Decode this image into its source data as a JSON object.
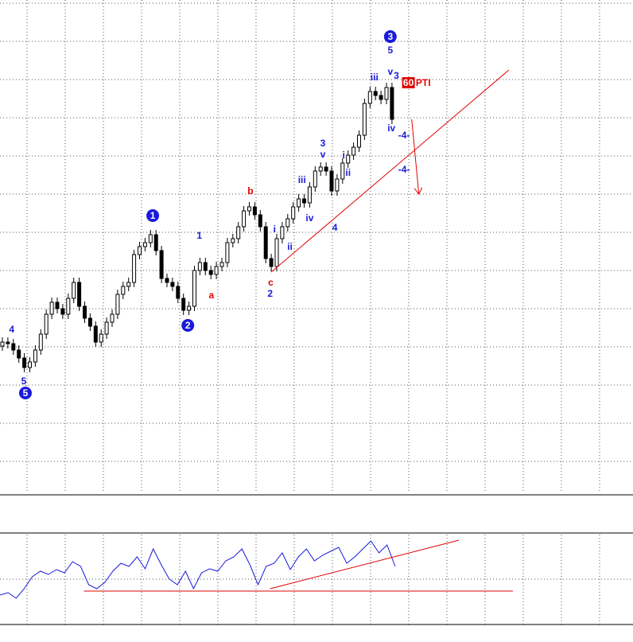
{
  "chart_data": {
    "type": "candlestick",
    "open": [
      185,
      190,
      188,
      180,
      170,
      158,
      165,
      180,
      200,
      225,
      240,
      232,
      225,
      245,
      265,
      235,
      220,
      210,
      190,
      200,
      215,
      225,
      250,
      260,
      265,
      300,
      310,
      315,
      325,
      305,
      270,
      265,
      260,
      245,
      230,
      235,
      280,
      290,
      280,
      275,
      285,
      290,
      315,
      320,
      335,
      355,
      360,
      350,
      335,
      295,
      285,
      320,
      335,
      345,
      360,
      370,
      365,
      385,
      405,
      410,
      405,
      380,
      395,
      415,
      425,
      435,
      450,
      490,
      505,
      500,
      495,
      510
    ],
    "high": [
      196,
      196,
      194,
      186,
      176,
      171,
      186,
      206,
      231,
      246,
      246,
      238,
      251,
      271,
      271,
      241,
      226,
      216,
      206,
      221,
      231,
      256,
      266,
      271,
      306,
      316,
      321,
      331,
      331,
      311,
      276,
      271,
      266,
      251,
      241,
      286,
      296,
      296,
      286,
      291,
      296,
      321,
      326,
      341,
      361,
      366,
      366,
      356,
      341,
      301,
      326,
      341,
      351,
      366,
      376,
      376,
      391,
      411,
      416,
      416,
      411,
      401,
      421,
      431,
      441,
      456,
      496,
      511,
      511,
      506,
      516,
      516
    ],
    "low": [
      179,
      182,
      174,
      164,
      152,
      152,
      159,
      174,
      194,
      219,
      226,
      219,
      219,
      239,
      229,
      214,
      204,
      184,
      184,
      194,
      209,
      219,
      244,
      254,
      259,
      294,
      304,
      309,
      299,
      264,
      259,
      254,
      239,
      224,
      224,
      229,
      274,
      274,
      269,
      269,
      279,
      284,
      309,
      314,
      329,
      349,
      344,
      329,
      289,
      279,
      279,
      314,
      329,
      339,
      354,
      359,
      359,
      379,
      399,
      399,
      374,
      374,
      389,
      409,
      419,
      429,
      444,
      484,
      494,
      489,
      489,
      464
    ],
    "close": [
      190,
      188,
      180,
      170,
      158,
      165,
      180,
      200,
      225,
      240,
      232,
      225,
      245,
      265,
      235,
      220,
      210,
      190,
      200,
      215,
      225,
      250,
      260,
      265,
      300,
      310,
      315,
      325,
      305,
      270,
      265,
      260,
      245,
      230,
      235,
      280,
      290,
      280,
      275,
      285,
      290,
      315,
      320,
      335,
      355,
      360,
      350,
      335,
      295,
      285,
      320,
      335,
      345,
      360,
      370,
      365,
      385,
      405,
      410,
      405,
      380,
      395,
      415,
      425,
      435,
      450,
      490,
      505,
      500,
      495,
      510,
      470
    ],
    "ylim": [
      0,
      620
    ],
    "annotations": [
      {
        "text": "4",
        "x": 1.7,
        "y": 206,
        "color": "#1a1adc"
      },
      {
        "text": "5",
        "x": 3.9,
        "y": 141,
        "color": "#1a1adc"
      },
      {
        "text": "5",
        "x": 4.2,
        "y": 126,
        "color": "#1a1adc",
        "circled": true
      },
      {
        "text": "1",
        "x": 27.4,
        "y": 349,
        "color": "#1a1adc",
        "circled": true
      },
      {
        "text": "2",
        "x": 33.8,
        "y": 211,
        "color": "#1a1adc",
        "circled": true
      },
      {
        "text": "1",
        "x": 35.9,
        "y": 324,
        "color": "#1a1adc"
      },
      {
        "text": "a",
        "x": 38.1,
        "y": 249,
        "color": "#e00000"
      },
      {
        "text": "b",
        "x": 45.2,
        "y": 380,
        "color": "#e00000"
      },
      {
        "text": "c",
        "x": 48.9,
        "y": 265,
        "color": "#e00000"
      },
      {
        "text": "2",
        "x": 48.8,
        "y": 251,
        "color": "#1a1adc"
      },
      {
        "text": "i",
        "x": 49.6,
        "y": 332,
        "color": "#1a1adc"
      },
      {
        "text": "ii",
        "x": 52.4,
        "y": 310,
        "color": "#1a1adc"
      },
      {
        "text": "iii",
        "x": 54.6,
        "y": 394,
        "color": "#1a1adc"
      },
      {
        "text": "iv",
        "x": 56.0,
        "y": 346,
        "color": "#1a1adc"
      },
      {
        "text": "3",
        "x": 58.4,
        "y": 440,
        "color": "#1a1adc"
      },
      {
        "text": "v",
        "x": 58.4,
        "y": 426,
        "color": "#1a1adc"
      },
      {
        "text": "4",
        "x": 60.6,
        "y": 334,
        "color": "#1a1adc"
      },
      {
        "text": "i",
        "x": 62.2,
        "y": 425,
        "color": "#1a1adc"
      },
      {
        "text": "ii",
        "x": 63.0,
        "y": 403,
        "color": "#1a1adc"
      },
      {
        "text": "iii",
        "x": 67.8,
        "y": 523,
        "color": "#1a1adc"
      },
      {
        "text": "v",
        "x": 70.7,
        "y": 530,
        "color": "#1a1adc"
      },
      {
        "text": "3",
        "x": 71.8,
        "y": 525,
        "color": "#1a1adc"
      },
      {
        "text": "iv",
        "x": 70.9,
        "y": 459,
        "color": "#1a1adc"
      },
      {
        "text": "3",
        "x": 70.7,
        "y": 574,
        "color": "#1a1adc",
        "circled": true
      },
      {
        "text": "5",
        "x": 70.7,
        "y": 557,
        "color": "#1a1adc"
      },
      {
        "text": "60",
        "x": 74.0,
        "y": 516,
        "color": "#ffffff",
        "boxed": "#e00000"
      },
      {
        "text": "PTI",
        "x": 76.7,
        "y": 516,
        "color": "#e00000"
      },
      {
        "text": "-4-",
        "x": 73.2,
        "y": 450,
        "color": "#1a1adc"
      },
      {
        "text": "-4-",
        "x": 73.2,
        "y": 407,
        "color": "#1a1adc"
      }
    ],
    "lines": [
      {
        "x1": 49.0,
        "y1": 278,
        "x2": 92.3,
        "y2": 532,
        "color": "#e00000"
      },
      {
        "x1": 74.6,
        "y1": 470,
        "x2": 75.9,
        "y2": 376,
        "color": "#e00000",
        "arrow": true
      }
    ],
    "indicator": {
      "values": [
        37,
        40,
        33,
        45,
        60,
        67,
        63,
        69,
        65,
        79,
        73,
        50,
        45,
        53,
        67,
        77,
        73,
        85,
        70,
        95,
        75,
        57,
        50,
        67,
        45,
        65,
        70,
        67,
        80,
        85,
        95,
        75,
        50,
        73,
        77,
        90,
        69,
        85,
        95,
        80,
        87,
        92,
        97,
        77,
        85,
        95,
        105,
        90,
        100,
        73
      ],
      "color": "#1a1adc",
      "ylim": [
        0,
        115
      ],
      "lines": [
        {
          "x1": 10.4,
          "y1": 42,
          "x2": 63.6,
          "y2": 42,
          "color": "#e00000"
        },
        {
          "x1": 33.5,
          "y1": 45,
          "x2": 56.9,
          "y2": 106,
          "color": "#e00000"
        }
      ]
    }
  }
}
